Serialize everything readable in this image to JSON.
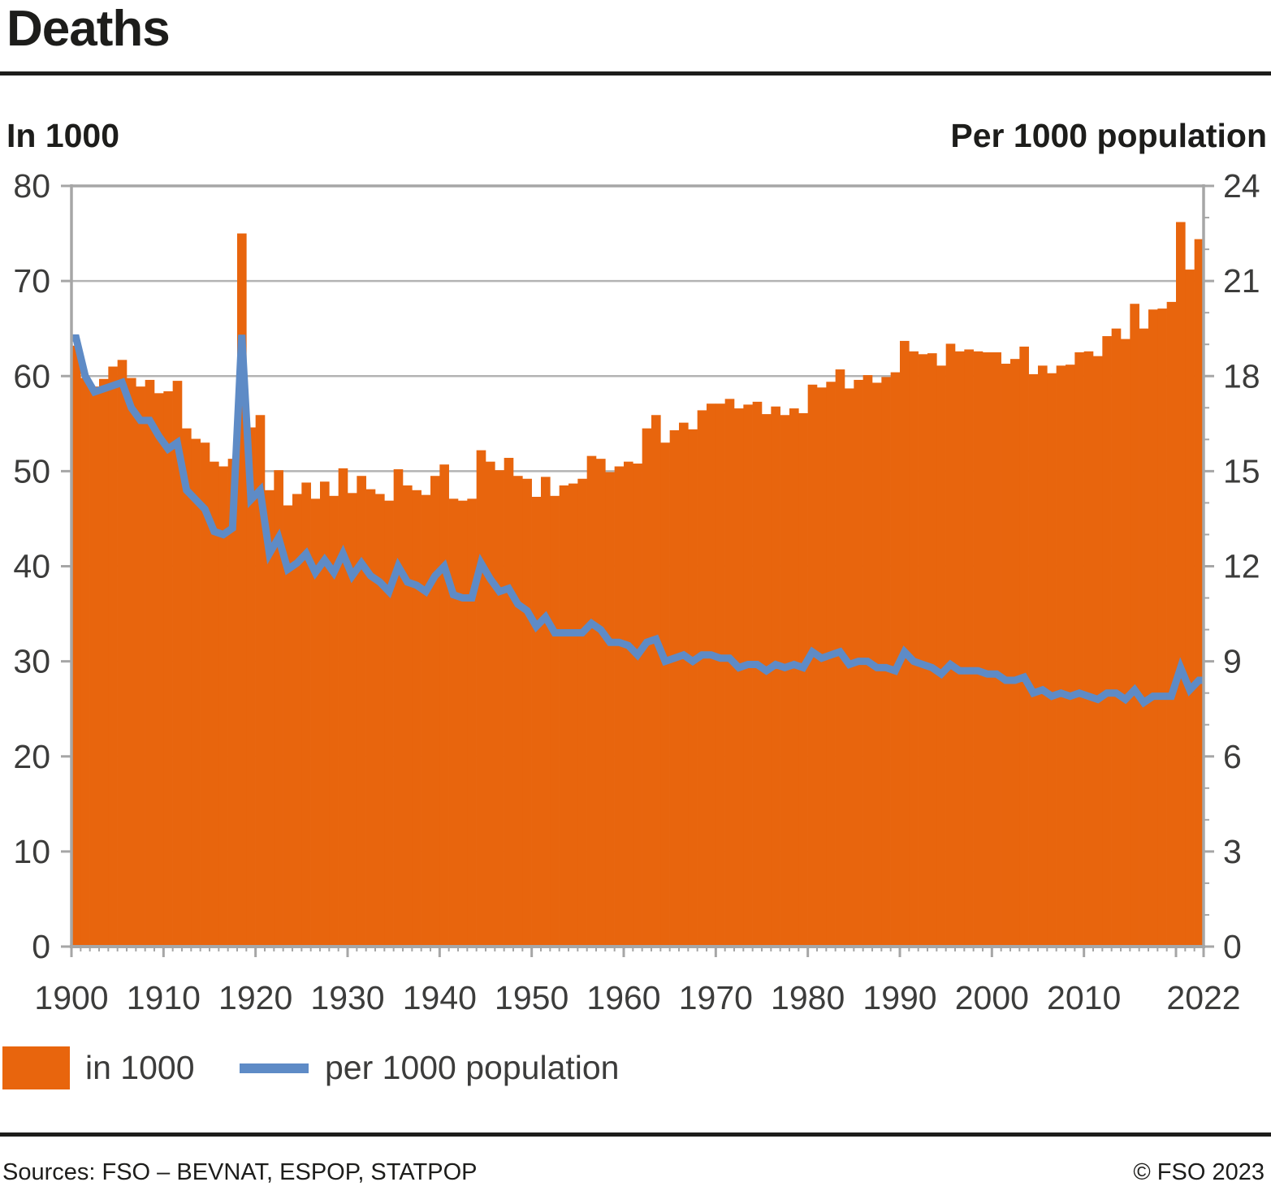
{
  "title": "Deaths",
  "axis_headers": {
    "left": "In 1000",
    "right": "Per 1000 population"
  },
  "legend": {
    "bar_label": "in 1000",
    "line_label": "per 1000 population"
  },
  "footer": {
    "sources": "Sources: FSO – BEVNAT, ESPOP, STATPOP",
    "copyright": "© FSO 2023"
  },
  "colors": {
    "bar": "#e8650d",
    "line": "#5e8bc6",
    "frame": "#a6a6a6",
    "grid": "#b3b3b3",
    "tick_text": "#3c3c3b",
    "text": "#1d1d1b"
  },
  "chart_data": {
    "type": "bar",
    "title": "Deaths",
    "legend_position": "bottom",
    "grid": "horizontal",
    "years": [
      1900,
      1901,
      1902,
      1903,
      1904,
      1905,
      1906,
      1907,
      1908,
      1909,
      1910,
      1911,
      1912,
      1913,
      1914,
      1915,
      1916,
      1917,
      1918,
      1919,
      1920,
      1921,
      1922,
      1923,
      1924,
      1925,
      1926,
      1927,
      1928,
      1929,
      1930,
      1931,
      1932,
      1933,
      1934,
      1935,
      1936,
      1937,
      1938,
      1939,
      1940,
      1941,
      1942,
      1943,
      1944,
      1945,
      1946,
      1947,
      1948,
      1949,
      1950,
      1951,
      1952,
      1953,
      1954,
      1955,
      1956,
      1957,
      1958,
      1959,
      1960,
      1961,
      1962,
      1963,
      1964,
      1965,
      1966,
      1967,
      1968,
      1969,
      1970,
      1971,
      1972,
      1973,
      1974,
      1975,
      1976,
      1977,
      1978,
      1979,
      1980,
      1981,
      1982,
      1983,
      1984,
      1985,
      1986,
      1987,
      1988,
      1989,
      1990,
      1991,
      1992,
      1993,
      1994,
      1995,
      1996,
      1997,
      1998,
      1999,
      2000,
      2001,
      2002,
      2003,
      2004,
      2005,
      2006,
      2007,
      2008,
      2009,
      2010,
      2011,
      2012,
      2013,
      2014,
      2015,
      2016,
      2017,
      2018,
      2019,
      2020,
      2021,
      2022
    ],
    "series": [
      {
        "name": "in 1000",
        "type": "bar",
        "axis": "left",
        "values": [
          63.2,
          59.8,
          58.9,
          59.7,
          61.0,
          61.7,
          59.8,
          58.9,
          59.6,
          58.2,
          58.4,
          59.5,
          54.5,
          53.4,
          53.0,
          51.0,
          50.5,
          51.3,
          75.0,
          54.6,
          55.9,
          48.0,
          50.1,
          46.4,
          47.6,
          48.8,
          47.1,
          48.9,
          47.4,
          50.3,
          47.7,
          49.5,
          48.1,
          47.6,
          46.9,
          50.2,
          48.5,
          48.0,
          47.5,
          49.5,
          50.7,
          47.1,
          46.9,
          47.1,
          52.2,
          51.0,
          50.1,
          51.4,
          49.5,
          49.2,
          47.3,
          49.4,
          47.4,
          48.5,
          48.7,
          49.2,
          51.6,
          51.3,
          49.9,
          50.5,
          51.0,
          50.8,
          54.5,
          55.9,
          53.0,
          54.3,
          55.1,
          54.4,
          56.4,
          57.1,
          57.1,
          57.6,
          56.6,
          57.0,
          57.3,
          56.0,
          56.8,
          55.9,
          56.6,
          56.1,
          59.1,
          58.8,
          59.4,
          60.7,
          58.7,
          59.6,
          60.1,
          59.3,
          59.9,
          60.4,
          63.7,
          62.6,
          62.3,
          62.4,
          61.1,
          63.4,
          62.6,
          62.8,
          62.6,
          62.5,
          62.5,
          61.3,
          61.8,
          63.1,
          60.2,
          61.1,
          60.3,
          61.1,
          61.2,
          62.5,
          62.6,
          62.1,
          64.2,
          65.0,
          63.9,
          67.6,
          65.0,
          67.0,
          67.1,
          67.8,
          76.2,
          71.2,
          74.4
        ]
      },
      {
        "name": "per 1000 population",
        "type": "line",
        "axis": "right",
        "values": [
          19.2,
          18.0,
          17.5,
          17.6,
          17.7,
          17.8,
          17.0,
          16.6,
          16.6,
          16.1,
          15.7,
          15.9,
          14.4,
          14.1,
          13.8,
          13.1,
          13.0,
          13.2,
          19.3,
          14.1,
          14.4,
          12.4,
          12.9,
          11.9,
          12.1,
          12.4,
          11.8,
          12.2,
          11.8,
          12.4,
          11.7,
          12.1,
          11.7,
          11.5,
          11.2,
          12.0,
          11.5,
          11.4,
          11.2,
          11.7,
          12.0,
          11.1,
          11.0,
          11.0,
          12.1,
          11.6,
          11.2,
          11.3,
          10.8,
          10.6,
          10.1,
          10.4,
          9.9,
          9.9,
          9.9,
          9.9,
          10.2,
          10.0,
          9.6,
          9.6,
          9.5,
          9.2,
          9.6,
          9.7,
          9.0,
          9.1,
          9.2,
          9.0,
          9.2,
          9.2,
          9.1,
          9.1,
          8.8,
          8.9,
          8.9,
          8.7,
          8.9,
          8.8,
          8.9,
          8.8,
          9.3,
          9.1,
          9.2,
          9.3,
          8.9,
          9.0,
          9.0,
          8.8,
          8.8,
          8.7,
          9.3,
          9.0,
          8.9,
          8.8,
          8.6,
          8.9,
          8.7,
          8.7,
          8.7,
          8.6,
          8.6,
          8.4,
          8.4,
          8.5,
          8.0,
          8.1,
          7.9,
          8.0,
          7.9,
          8.0,
          7.9,
          7.8,
          8.0,
          8.0,
          7.8,
          8.1,
          7.7,
          7.9,
          7.9,
          7.9,
          8.8,
          8.1,
          8.4
        ]
      }
    ],
    "left_axis": {
      "label": "In 1000",
      "min": 0,
      "max": 80,
      "ticks": [
        0,
        10,
        20,
        30,
        40,
        50,
        60,
        70,
        80
      ]
    },
    "right_axis": {
      "label": "Per 1000 population",
      "min": 0,
      "max": 24,
      "ticks": [
        0,
        3,
        6,
        9,
        12,
        15,
        18,
        21,
        24
      ],
      "minor_step": 1
    },
    "x_axis": {
      "minor_tick_step": 1,
      "major_tick_years": [
        1900,
        1910,
        1920,
        1930,
        1940,
        1950,
        1960,
        1970,
        1980,
        1990,
        2000,
        2010,
        2020
      ],
      "tick_labels": [
        {
          "text": "1900",
          "year": 1900
        },
        {
          "text": "1910",
          "year": 1910
        },
        {
          "text": "1920",
          "year": 1920
        },
        {
          "text": "1930",
          "year": 1930
        },
        {
          "text": "1940",
          "year": 1940
        },
        {
          "text": "1950",
          "year": 1950
        },
        {
          "text": "1960",
          "year": 1960
        },
        {
          "text": "1970",
          "year": 1970
        },
        {
          "text": "1980",
          "year": 1980
        },
        {
          "text": "1990",
          "year": 1990
        },
        {
          "text": "2000",
          "year": 2000
        },
        {
          "text": "2010",
          "year": 2010
        },
        {
          "text": "2022",
          "year": "end"
        }
      ]
    }
  }
}
